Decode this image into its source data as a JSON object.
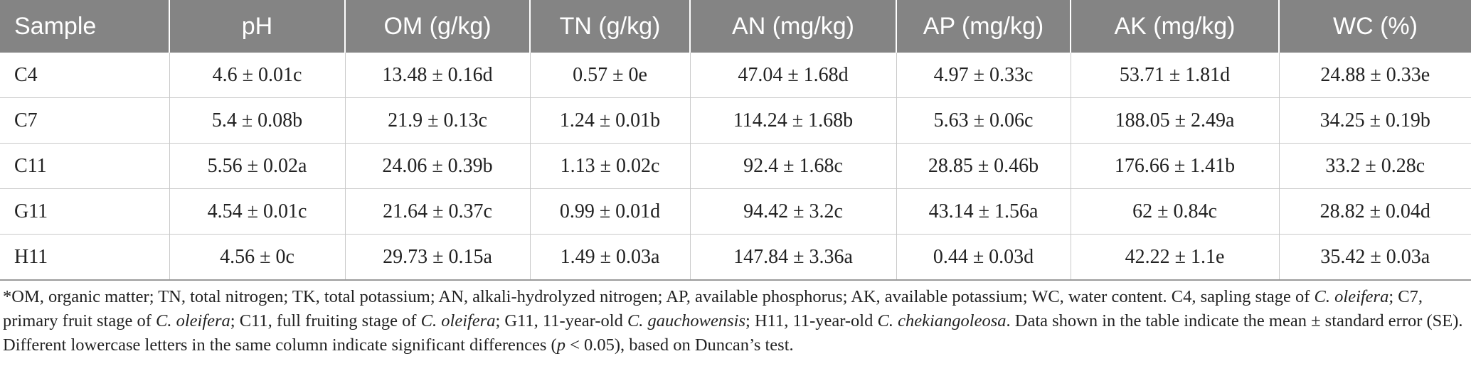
{
  "table": {
    "headers": [
      "Sample",
      "pH",
      "OM (g/kg)",
      "TN (g/kg)",
      "AN (mg/kg)",
      "AP (mg/kg)",
      "AK (mg/kg)",
      "WC (%)"
    ],
    "rows": [
      [
        "C4",
        "4.6 ± 0.01c",
        "13.48 ± 0.16d",
        "0.57 ± 0e",
        "47.04 ± 1.68d",
        "4.97 ± 0.33c",
        "53.71 ± 1.81d",
        "24.88 ± 0.33e"
      ],
      [
        "C7",
        "5.4 ± 0.08b",
        "21.9 ± 0.13c",
        "1.24 ± 0.01b",
        "114.24 ± 1.68b",
        "5.63 ± 0.06c",
        "188.05 ± 2.49a",
        "34.25 ± 0.19b"
      ],
      [
        "C11",
        "5.56 ± 0.02a",
        "24.06 ± 0.39b",
        "1.13 ± 0.02c",
        "92.4 ± 1.68c",
        "28.85 ± 0.46b",
        "176.66 ± 1.41b",
        "33.2 ± 0.28c"
      ],
      [
        "G11",
        "4.54 ± 0.01c",
        "21.64 ± 0.37c",
        "0.99 ± 0.01d",
        "94.42 ± 3.2c",
        "43.14 ± 1.56a",
        "62 ± 0.84c",
        "28.82 ± 0.04d"
      ],
      [
        "H11",
        "4.56 ± 0c",
        "29.73 ± 0.15a",
        "1.49 ± 0.03a",
        "147.84 ± 3.36a",
        "0.44 ± 0.03d",
        "42.22 ± 1.1e",
        "35.42 ± 0.03a"
      ]
    ]
  },
  "footnote": {
    "t1": "*OM, organic matter; TN, total nitrogen; TK, total potassium; AN, alkali-hydrolyzed nitrogen; AP, available phosphorus; AK, available potassium; WC, water content. C4, sapling stage of ",
    "i1": "C. oleifera",
    "t2": "; C7, primary fruit stage of ",
    "i2": "C. oleifera",
    "t3": "; C11, full fruiting stage of ",
    "i3": "C. oleifera",
    "t4": "; G11, 11-year-old ",
    "i4": "C. gauchowensis",
    "t5": "; H11, 11-year-old ",
    "i5": "C. chekiangoleosa",
    "t6": ". Data shown in the table indicate the mean ± standard error (SE). Different lowercase letters in the same column indicate significant differences (",
    "i6": "p",
    "t7": " < 0.05), based on Duncan’s test."
  }
}
